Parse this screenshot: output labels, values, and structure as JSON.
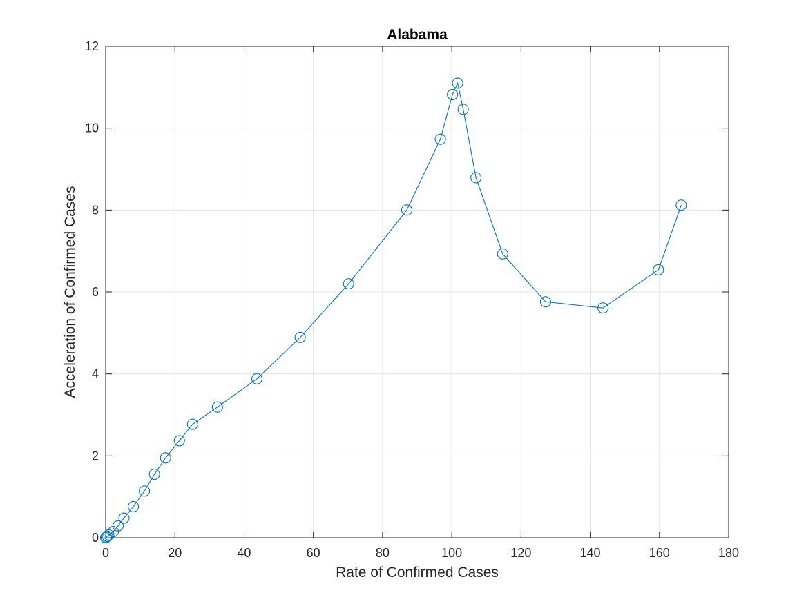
{
  "chart_data": {
    "type": "line",
    "title": "Alabama",
    "xlabel": "Rate of Confirmed Cases",
    "ylabel": "Acceleration of Confirmed Cases",
    "xlim": [
      0,
      180
    ],
    "ylim": [
      0,
      12
    ],
    "xticks": [
      0,
      20,
      40,
      60,
      80,
      100,
      120,
      140,
      160,
      180
    ],
    "yticks": [
      0,
      2,
      4,
      6,
      8,
      10,
      12
    ],
    "grid": true,
    "legend": "none",
    "marker": "circle-open",
    "color": "#0072BD",
    "series": [
      {
        "x": [
          0,
          0.2,
          0.5,
          0.9,
          2.2,
          3.6,
          5.3,
          8.0,
          11.2,
          14.1,
          17.3,
          21.3,
          25.1,
          32.3,
          43.7,
          56.2,
          70.2,
          87.0,
          96.7,
          100.2,
          101.7,
          103.3,
          107.0,
          114.7,
          127.1,
          143.7,
          159.7,
          166.3
        ],
        "y": [
          0,
          0.02,
          0.04,
          0.07,
          0.15,
          0.29,
          0.48,
          0.76,
          1.14,
          1.55,
          1.95,
          2.37,
          2.77,
          3.19,
          3.88,
          4.89,
          6.2,
          8.0,
          9.73,
          10.82,
          11.1,
          10.46,
          8.79,
          6.93,
          5.76,
          5.61,
          6.54,
          8.12
        ]
      }
    ]
  }
}
